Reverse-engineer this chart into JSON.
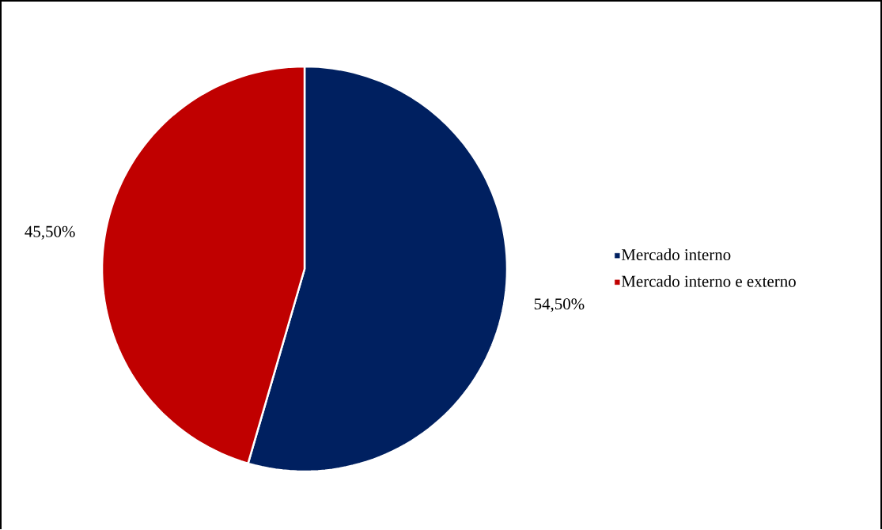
{
  "chart_data": {
    "type": "pie",
    "categories": [
      "Mercado interno",
      "Mercado interno e externo"
    ],
    "values": [
      54.5,
      45.5
    ],
    "colors": [
      "#002060",
      "#c00000"
    ],
    "value_labels": [
      "54,50%",
      "45,50%"
    ],
    "legend": "right"
  }
}
